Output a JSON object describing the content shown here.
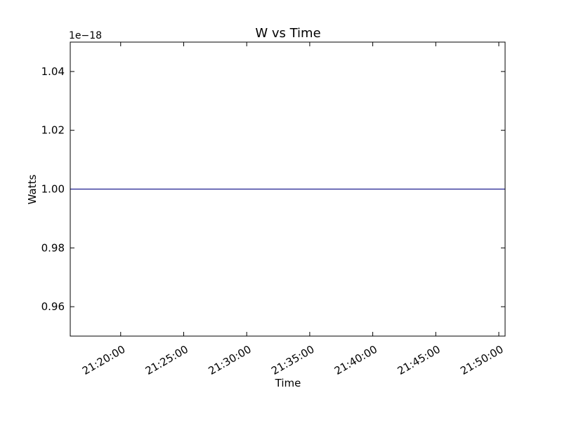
{
  "chart_data": {
    "type": "line",
    "title": "W vs Time",
    "xlabel": "Time",
    "ylabel": "Watts",
    "y_offset_label": "1e−18",
    "x_ticks": [
      "21:20:00",
      "21:25:00",
      "21:30:00",
      "21:35:00",
      "21:40:00",
      "21:45:00",
      "21:50:00"
    ],
    "x_tick_seconds": [
      76800,
      77100,
      77400,
      77700,
      78000,
      78300,
      78600
    ],
    "xlim_seconds": [
      76560,
      78630
    ],
    "y_ticks": [
      0.96,
      0.98,
      1.0,
      1.02,
      1.04
    ],
    "y_tick_labels": [
      "0.96",
      "0.98",
      "1.00",
      "1.02",
      "1.04"
    ],
    "ylim": [
      0.95,
      1.05
    ],
    "y_scale": 1e-18,
    "grid": false,
    "series": [
      {
        "color": "#1f1f8f",
        "x_seconds": [
          76560,
          78630
        ],
        "y": [
          1.0,
          1.0
        ]
      }
    ]
  }
}
